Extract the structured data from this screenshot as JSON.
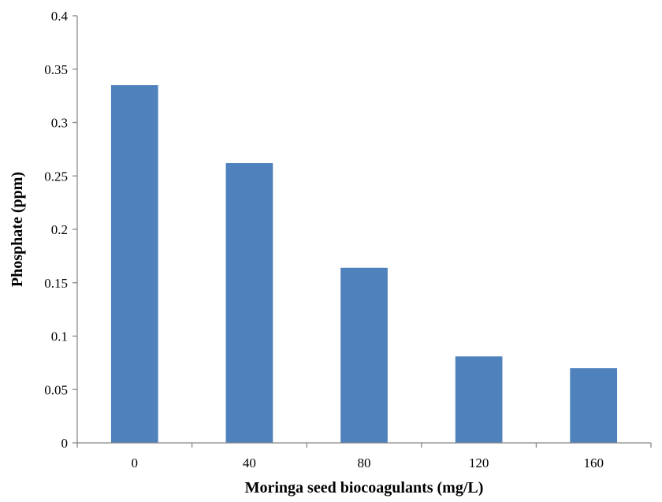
{
  "chart_data": {
    "type": "bar",
    "categories": [
      "0",
      "40",
      "80",
      "120",
      "160"
    ],
    "values": [
      0.335,
      0.262,
      0.164,
      0.081,
      0.07
    ],
    "xlabel": "Moringa seed biocoagulants (mg/L)",
    "ylabel": "Phosphate (ppm)",
    "ylim": [
      0,
      0.4
    ],
    "yticks": [
      "0",
      "0.05",
      "0.1",
      "0.15",
      "0.2",
      "0.25",
      "0.3",
      "0.35",
      "0.4"
    ],
    "grid": false,
    "legend": "none",
    "bar_color": "#4f81bd"
  }
}
